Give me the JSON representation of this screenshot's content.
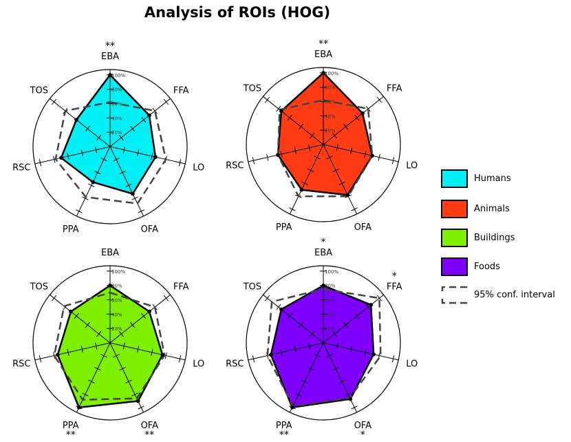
{
  "title": "Analysis of ROIs (HOG)",
  "colors": {
    "humans": "#00f0f5",
    "animals": "#ff3c14",
    "buildings": "#7ff000",
    "foods": "#7f00ff",
    "ci": "#444444",
    "axis": "#000000"
  },
  "legend": [
    {
      "label": "Humans",
      "color_key": "humans"
    },
    {
      "label": "Animals",
      "color_key": "animals"
    },
    {
      "label": "Buildings",
      "color_key": "buildings"
    },
    {
      "label": "Foods",
      "color_key": "foods"
    },
    {
      "label": "95% conf. interval",
      "color_key": "ci"
    }
  ],
  "chart_data": [
    {
      "type": "radar",
      "series_name": "Humans",
      "color_key": "humans",
      "axes": [
        "EBA",
        "FFA",
        "LO",
        "OFA",
        "PPA",
        "RSC",
        "TOS"
      ],
      "values": [
        100,
        70,
        65,
        73,
        55,
        70,
        60
      ],
      "ci": [
        62,
        80,
        80,
        88,
        78,
        78,
        80
      ],
      "scale_labels": [
        "20%",
        "40%",
        "60%",
        "80%",
        "100%"
      ],
      "significance": {
        "EBA": "**"
      }
    },
    {
      "type": "radar",
      "series_name": "Animals",
      "color_key": "animals",
      "axes": [
        "EBA",
        "FFA",
        "LO",
        "OFA",
        "PPA",
        "RSC",
        "TOS"
      ],
      "values": [
        100,
        70,
        70,
        78,
        70,
        65,
        75
      ],
      "ci": [
        62,
        80,
        70,
        80,
        80,
        65,
        78
      ],
      "scale_labels": [
        "20%",
        "40%",
        "60%",
        "80%",
        "100%"
      ],
      "significance": {
        "EBA": "**"
      }
    },
    {
      "type": "radar",
      "series_name": "Buildings",
      "color_key": "buildings",
      "axes": [
        "EBA",
        "FFA",
        "LO",
        "OFA",
        "PPA",
        "RSC",
        "TOS"
      ],
      "values": [
        80,
        70,
        75,
        90,
        100,
        75,
        70
      ],
      "ci": [
        70,
        80,
        78,
        86,
        88,
        80,
        82
      ],
      "scale_labels": [
        "20%",
        "40%",
        "60%",
        "80%",
        "100%"
      ],
      "significance": {
        "PPA": "**",
        "OFA": "**"
      }
    },
    {
      "type": "radar",
      "series_name": "Foods",
      "color_key": "foods",
      "axes": [
        "EBA",
        "FFA",
        "LO",
        "OFA",
        "PPA",
        "RSC",
        "TOS"
      ],
      "values": [
        80,
        85,
        72,
        87,
        100,
        75,
        75
      ],
      "ci": [
        75,
        100,
        82,
        85,
        98,
        80,
        92
      ],
      "scale_labels": [
        "20%",
        "40%",
        "60%",
        "80%",
        "100%"
      ],
      "significance": {
        "EBA": "*",
        "FFA": "*",
        "PPA": "**",
        "OFA": "*"
      }
    }
  ]
}
